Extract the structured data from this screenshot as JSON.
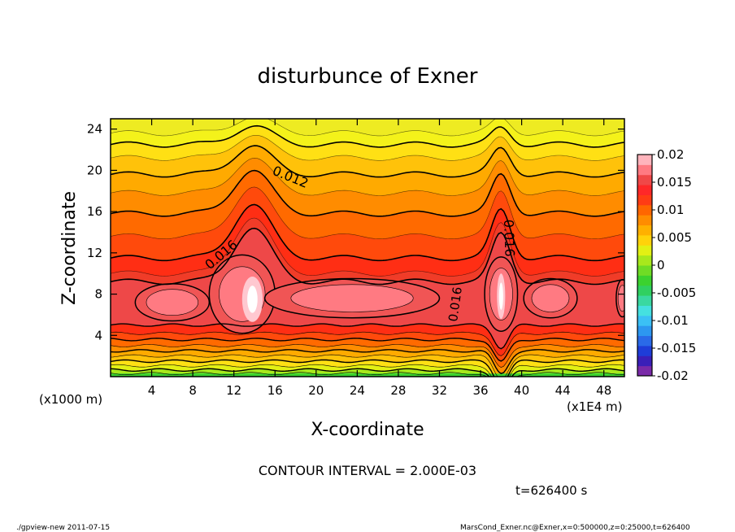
{
  "chart_data": {
    "type": "heatmap",
    "title": "disturbunce of Exner",
    "xlabel": "X-coordinate",
    "ylabel": "Z-coordinate",
    "x_unit": "(x1E4 m)",
    "y_unit": "(x1000 m)",
    "xlim": [
      0,
      50
    ],
    "ylim": [
      0,
      25
    ],
    "x_ticks": [
      "4",
      "8",
      "12",
      "16",
      "20",
      "24",
      "28",
      "32",
      "36",
      "40",
      "44",
      "48"
    ],
    "y_ticks": [
      "4",
      "8",
      "12",
      "16",
      "20",
      "24"
    ],
    "colorbar": {
      "min": -0.02,
      "max": 0.02,
      "tick_labels": [
        "0.02",
        "0.015",
        "0.01",
        "0.005",
        "0",
        "-0.005",
        "-0.01",
        "-0.015",
        "-0.02"
      ],
      "colors": [
        "#7a2aa8",
        "#3a1fb8",
        "#1e3dd8",
        "#2a6ae8",
        "#2d97f0",
        "#3bc0f5",
        "#45e0e0",
        "#3ad8a0",
        "#30d060",
        "#3bd22f",
        "#6fdc25",
        "#a8e81c",
        "#e2f014",
        "#ffd20a",
        "#ffb000",
        "#ff8c00",
        "#ff6600",
        "#ff3c14",
        "#ff2828",
        "#f04848",
        "#ff7a82",
        "#ffb4bc"
      ]
    },
    "contour_interval": "CONTOUR INTERVAL = 2.000E-03",
    "contour_labels": [
      "0.012",
      "0.016",
      "0.016",
      "0.016"
    ],
    "time": "t=626400 s",
    "footer_left": "./gpview-new   2011-07-15",
    "footer_right": "MarsCond_Exner.nc@Exner,x=0:500000,z=0:25000,t=626400"
  }
}
